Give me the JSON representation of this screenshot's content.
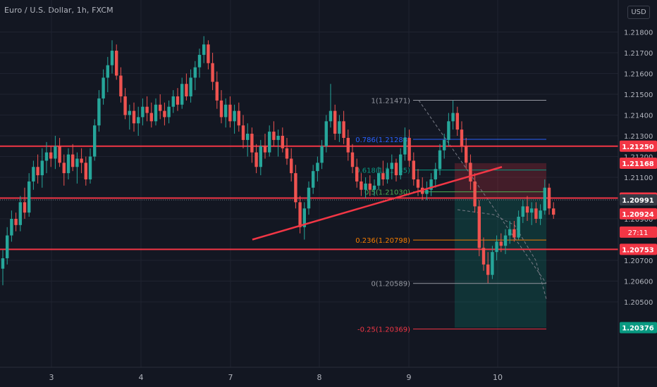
{
  "header": {
    "symbol_title": "Euro / U.S. Dollar, 1h, FXCM",
    "currency": "USD"
  },
  "chart_data": {
    "type": "candlestick",
    "price_axis": {
      "ticks": [
        "1.21800",
        "1.21700",
        "1.21600",
        "1.21500",
        "1.21400",
        "1.21300",
        "1.21200",
        "1.21100",
        "1.21000",
        "1.20900",
        "1.20700",
        "1.20600",
        "1.20500"
      ],
      "range": [
        1.2025,
        1.2195
      ]
    },
    "time_axis": {
      "labels": [
        "3",
        "4",
        "7",
        "8",
        "9",
        "10"
      ]
    },
    "horizontal_levels": [
      {
        "price": 1.2125,
        "label": "1.21250",
        "color": "#f23645"
      },
      {
        "price": 1.21,
        "label": "1.21000",
        "color": "#f23645"
      },
      {
        "price": 1.20753,
        "label": "1.20753",
        "color": "#f23645"
      }
    ],
    "price_badges": [
      {
        "price": 1.21168,
        "label": "1.21168",
        "color": "#f23645"
      },
      {
        "price": 1.20991,
        "label": "1.20991",
        "color": "#363a45"
      },
      {
        "price": 1.20924,
        "label": "1.20924",
        "color": "#f23645"
      },
      {
        "price": 1.20376,
        "label": "1.20376",
        "color": "#089981"
      }
    ],
    "countdown": "27:11",
    "fibonacci": [
      {
        "ratio_label": "1(1.21471)",
        "price": 1.21471,
        "color": "#9598a1"
      },
      {
        "ratio_label": "0.786(1.21283)",
        "price": 1.21283,
        "color": "#2962ff"
      },
      {
        "ratio_label": "0.618(1.21135)",
        "price": 1.21135,
        "color": "#089981"
      },
      {
        "ratio_label": "0.5(1.21030)",
        "price": 1.2103,
        "color": "#4caf50"
      },
      {
        "ratio_label": "0.236(1.20798)",
        "price": 1.20798,
        "color": "#f57c00"
      },
      {
        "ratio_label": "0(1.20589)",
        "price": 1.20589,
        "color": "#9598a1"
      },
      {
        "ratio_label": "-0.25(1.20369)",
        "price": 1.20369,
        "color": "#f23645"
      }
    ],
    "trendline": {
      "from": {
        "day": "7",
        "price": 1.208
      },
      "to": {
        "day": "10",
        "price": 1.2115
      },
      "color": "#f23645"
    },
    "position": {
      "entry": 1.20998,
      "stop": 1.21168,
      "target": 1.20376
    },
    "candles": [
      [
        1.2066,
        1.2075,
        1.2058,
        1.2071
      ],
      [
        1.2071,
        1.2086,
        1.2068,
        1.2082
      ],
      [
        1.2082,
        1.2094,
        1.2079,
        1.209
      ],
      [
        1.209,
        1.2093,
        1.2084,
        1.2087
      ],
      [
        1.2087,
        1.2101,
        1.2084,
        1.2098
      ],
      [
        1.2098,
        1.2105,
        1.209,
        1.2093
      ],
      [
        1.2093,
        1.2112,
        1.2091,
        1.2108
      ],
      [
        1.2108,
        1.2118,
        1.2104,
        1.2115
      ],
      [
        1.2115,
        1.2121,
        1.2107,
        1.2111
      ],
      [
        1.2111,
        1.2124,
        1.2105,
        1.2118
      ],
      [
        1.2118,
        1.2127,
        1.2112,
        1.2122
      ],
      [
        1.2122,
        1.2125,
        1.2115,
        1.2119
      ],
      [
        1.2119,
        1.213,
        1.2114,
        1.2125
      ],
      [
        1.2125,
        1.2129,
        1.2115,
        1.2117
      ],
      [
        1.2117,
        1.2121,
        1.2106,
        1.2112
      ],
      [
        1.2112,
        1.2124,
        1.2109,
        1.2121
      ],
      [
        1.2121,
        1.2126,
        1.2113,
        1.2115
      ],
      [
        1.2115,
        1.2122,
        1.2107,
        1.2119
      ],
      [
        1.2119,
        1.2124,
        1.2112,
        1.2117
      ],
      [
        1.2117,
        1.212,
        1.2106,
        1.2109
      ],
      [
        1.2109,
        1.2124,
        1.2107,
        1.212
      ],
      [
        1.212,
        1.2138,
        1.2118,
        1.2135
      ],
      [
        1.2135,
        1.2152,
        1.2132,
        1.2148
      ],
      [
        1.2148,
        1.2162,
        1.2145,
        1.2158
      ],
      [
        1.2158,
        1.2168,
        1.2151,
        1.2164
      ],
      [
        1.2164,
        1.2176,
        1.216,
        1.2171
      ],
      [
        1.2171,
        1.2174,
        1.2157,
        1.2159
      ],
      [
        1.2159,
        1.2163,
        1.2146,
        1.2149
      ],
      [
        1.2149,
        1.2153,
        1.2138,
        1.214
      ],
      [
        1.214,
        1.2145,
        1.2133,
        1.2142
      ],
      [
        1.2142,
        1.2146,
        1.2132,
        1.2136
      ],
      [
        1.2136,
        1.2144,
        1.213,
        1.2139
      ],
      [
        1.2139,
        1.2148,
        1.2135,
        1.2144
      ],
      [
        1.2144,
        1.2149,
        1.2137,
        1.2141
      ],
      [
        1.2141,
        1.2146,
        1.2134,
        1.2137
      ],
      [
        1.2137,
        1.2148,
        1.2135,
        1.2145
      ],
      [
        1.2145,
        1.215,
        1.2138,
        1.2142
      ],
      [
        1.2142,
        1.2146,
        1.2135,
        1.2139
      ],
      [
        1.2139,
        1.2147,
        1.2136,
        1.2144
      ],
      [
        1.2144,
        1.2152,
        1.2141,
        1.2149
      ],
      [
        1.2149,
        1.2153,
        1.2142,
        1.2145
      ],
      [
        1.2145,
        1.2158,
        1.2143,
        1.2155
      ],
      [
        1.2155,
        1.216,
        1.2147,
        1.2149
      ],
      [
        1.2149,
        1.2162,
        1.2146,
        1.2158
      ],
      [
        1.2158,
        1.2166,
        1.2152,
        1.2163
      ],
      [
        1.2163,
        1.2172,
        1.2158,
        1.2169
      ],
      [
        1.2169,
        1.2178,
        1.2165,
        1.2174
      ],
      [
        1.2174,
        1.2176,
        1.2162,
        1.2165
      ],
      [
        1.2165,
        1.217,
        1.2152,
        1.2156
      ],
      [
        1.2156,
        1.2161,
        1.2143,
        1.2147
      ],
      [
        1.2147,
        1.2152,
        1.2136,
        1.2139
      ],
      [
        1.2139,
        1.2148,
        1.2134,
        1.2145
      ],
      [
        1.2145,
        1.2149,
        1.2134,
        1.2137
      ],
      [
        1.2137,
        1.2145,
        1.2131,
        1.2142
      ],
      [
        1.2142,
        1.2146,
        1.2132,
        1.2135
      ],
      [
        1.2135,
        1.214,
        1.2124,
        1.2128
      ],
      [
        1.2128,
        1.2136,
        1.212,
        1.2131
      ],
      [
        1.2131,
        1.2134,
        1.2117,
        1.2122
      ],
      [
        1.2122,
        1.2126,
        1.2112,
        1.2115
      ],
      [
        1.2115,
        1.2128,
        1.2111,
        1.2125
      ],
      [
        1.2125,
        1.2131,
        1.2119,
        1.2122
      ],
      [
        1.2122,
        1.2135,
        1.212,
        1.2132
      ],
      [
        1.2132,
        1.2137,
        1.2125,
        1.2128
      ],
      [
        1.2128,
        1.2133,
        1.212,
        1.213
      ],
      [
        1.213,
        1.2134,
        1.2122,
        1.2124
      ],
      [
        1.2124,
        1.2129,
        1.2116,
        1.2119
      ],
      [
        1.2119,
        1.2124,
        1.2108,
        1.2112
      ],
      [
        1.2112,
        1.2116,
        1.2095,
        1.2098
      ],
      [
        1.2098,
        1.2101,
        1.2083,
        1.2086
      ],
      [
        1.2086,
        1.2098,
        1.208,
        1.2095
      ],
      [
        1.2095,
        1.2108,
        1.2092,
        1.2105
      ],
      [
        1.2105,
        1.2116,
        1.2102,
        1.2113
      ],
      [
        1.2113,
        1.212,
        1.2108,
        1.2117
      ],
      [
        1.2117,
        1.2128,
        1.2114,
        1.2125
      ],
      [
        1.2125,
        1.214,
        1.2122,
        1.2137
      ],
      [
        1.2137,
        1.2155,
        1.2134,
        1.2142
      ],
      [
        1.2142,
        1.2145,
        1.2128,
        1.2131
      ],
      [
        1.2131,
        1.214,
        1.2127,
        1.2137
      ],
      [
        1.2137,
        1.2142,
        1.2126,
        1.2129
      ],
      [
        1.2129,
        1.2133,
        1.2118,
        1.2122
      ],
      [
        1.2122,
        1.2126,
        1.2112,
        1.2115
      ],
      [
        1.2115,
        1.2119,
        1.2105,
        1.2108
      ],
      [
        1.2108,
        1.2112,
        1.2101,
        1.2104
      ],
      [
        1.2104,
        1.211,
        1.21,
        1.2107
      ],
      [
        1.2107,
        1.2111,
        1.2101,
        1.2104
      ],
      [
        1.2104,
        1.2109,
        1.2101,
        1.2106
      ],
      [
        1.2106,
        1.2115,
        1.2104,
        1.2112
      ],
      [
        1.2112,
        1.2118,
        1.2106,
        1.2109
      ],
      [
        1.2109,
        1.2117,
        1.2107,
        1.2114
      ],
      [
        1.2114,
        1.2121,
        1.2109,
        1.2117
      ],
      [
        1.2117,
        1.2119,
        1.2108,
        1.2111
      ],
      [
        1.2111,
        1.2124,
        1.2109,
        1.2121
      ],
      [
        1.2121,
        1.2134,
        1.2118,
        1.2129
      ],
      [
        1.2129,
        1.2133,
        1.2115,
        1.2118
      ],
      [
        1.2118,
        1.2122,
        1.2106,
        1.2109
      ],
      [
        1.2109,
        1.2114,
        1.2101,
        1.2105
      ],
      [
        1.2105,
        1.211,
        1.2099,
        1.2102
      ],
      [
        1.2102,
        1.2108,
        1.2099,
        1.2104
      ],
      [
        1.2104,
        1.2112,
        1.2101,
        1.2109
      ],
      [
        1.2109,
        1.2117,
        1.2105,
        1.2114
      ],
      [
        1.2114,
        1.2126,
        1.2111,
        1.2123
      ],
      [
        1.2123,
        1.2131,
        1.2119,
        1.2128
      ],
      [
        1.2128,
        1.2141,
        1.2125,
        1.2137
      ],
      [
        1.2137,
        1.2147,
        1.2133,
        1.2141
      ],
      [
        1.2141,
        1.2144,
        1.213,
        1.2133
      ],
      [
        1.2133,
        1.2137,
        1.2122,
        1.2125
      ],
      [
        1.2125,
        1.2129,
        1.2114,
        1.2117
      ],
      [
        1.2117,
        1.2121,
        1.2104,
        1.2108
      ],
      [
        1.2108,
        1.2112,
        1.2093,
        1.2096
      ],
      [
        1.2096,
        1.2099,
        1.2072,
        1.2076
      ],
      [
        1.2076,
        1.2081,
        1.2065,
        1.2068
      ],
      [
        1.2068,
        1.2074,
        1.2059,
        1.2063
      ],
      [
        1.2063,
        1.2077,
        1.2061,
        1.2074
      ],
      [
        1.2074,
        1.2082,
        1.207,
        1.2079
      ],
      [
        1.2079,
        1.2083,
        1.2074,
        1.2077
      ],
      [
        1.2077,
        1.2085,
        1.2073,
        1.2082
      ],
      [
        1.2082,
        1.2089,
        1.2078,
        1.2085
      ],
      [
        1.2085,
        1.2089,
        1.2079,
        1.2081
      ],
      [
        1.2081,
        1.2094,
        1.208,
        1.2091
      ],
      [
        1.2091,
        1.2099,
        1.2088,
        1.2096
      ],
      [
        1.2096,
        1.2101,
        1.2089,
        1.2093
      ],
      [
        1.2093,
        1.2098,
        1.2087,
        1.2095
      ],
      [
        1.2095,
        1.2098,
        1.2088,
        1.209
      ],
      [
        1.209,
        1.2097,
        1.2087,
        1.2094
      ],
      [
        1.2094,
        1.2109,
        1.2092,
        1.2105
      ],
      [
        1.2105,
        1.2107,
        1.2092,
        1.2095
      ],
      [
        1.2095,
        1.2098,
        1.209,
        1.2092
      ]
    ]
  }
}
